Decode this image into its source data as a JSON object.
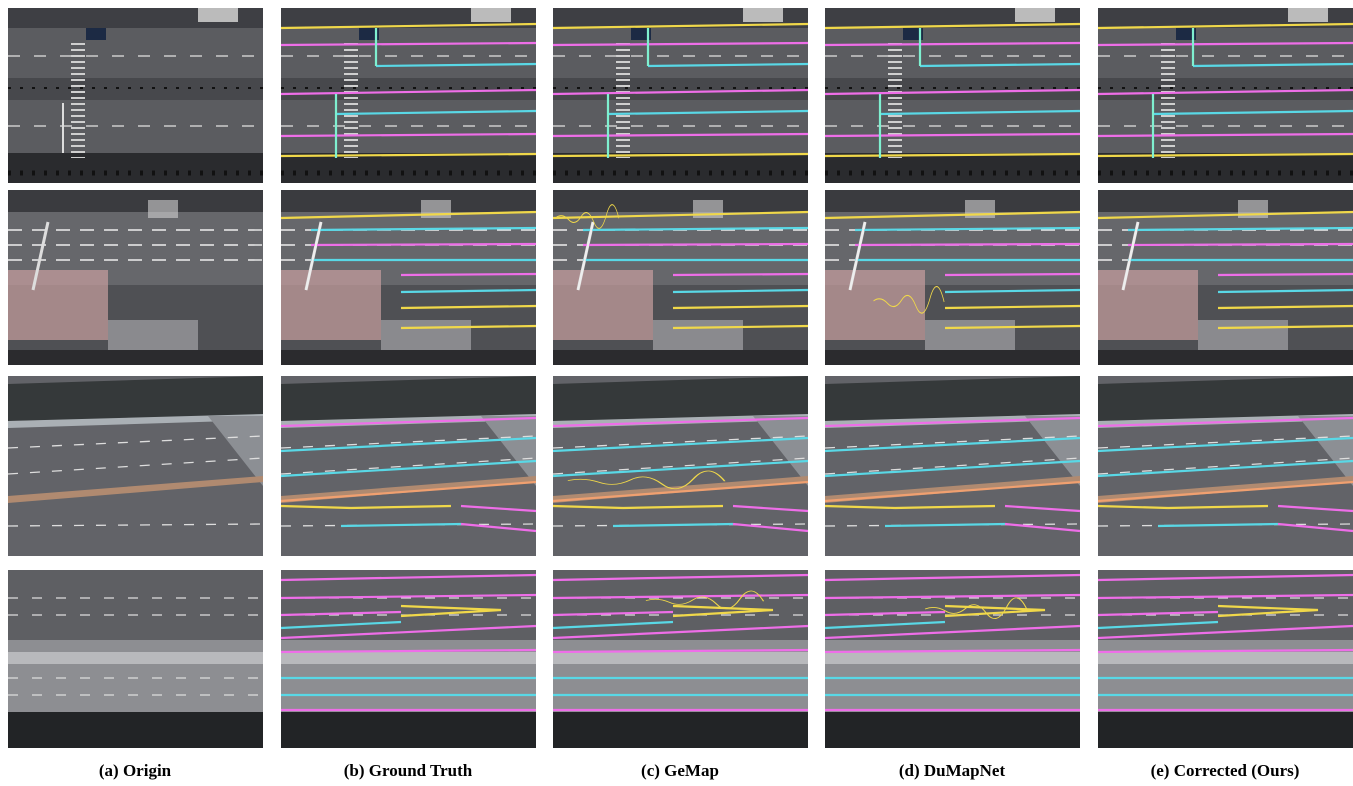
{
  "figure": {
    "captions": [
      "(a) Origin",
      "(b) Ground Truth",
      "(c) GeMap",
      "(d) DuMapNet",
      "(e) Corrected (Ours)"
    ]
  }
}
